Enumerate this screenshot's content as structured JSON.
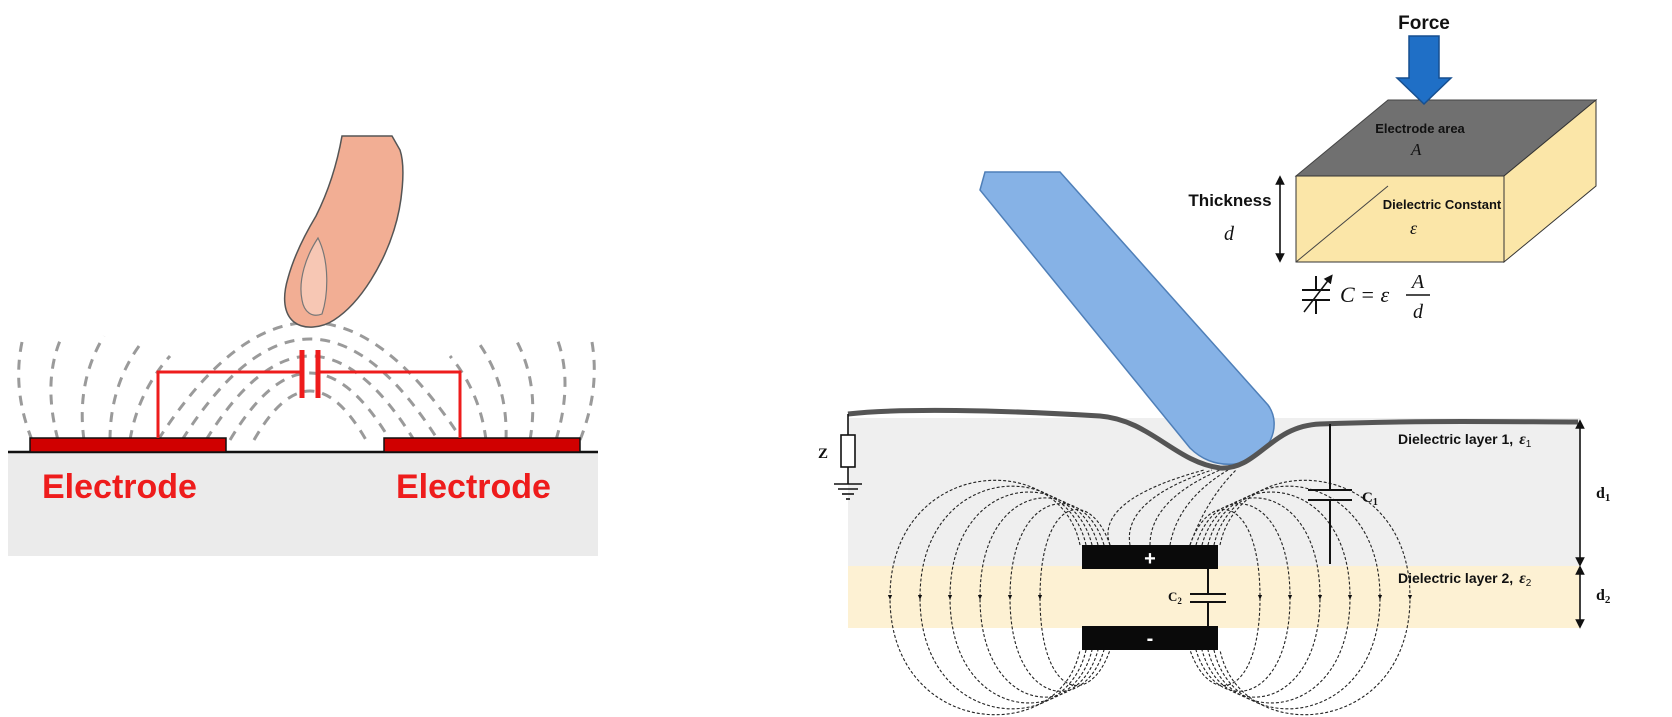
{
  "left_panel": {
    "electrode_left": "Electrode",
    "electrode_right": "Electrode"
  },
  "right_panel": {
    "force": "Force",
    "electrode_area": "Electrode area",
    "area_symbol": "A",
    "thickness": "Thickness",
    "thickness_symbol": "d",
    "dielectric_constant": "Dielectric Constant",
    "epsilon_symbol": "ε",
    "formula_lhs": "C = ε",
    "formula_num": "A",
    "formula_den": "d",
    "z_label": "Z",
    "c1_label": "C",
    "c1_sub": "1",
    "c2_label": "C",
    "c2_sub": "2",
    "plus": "+",
    "minus": "-",
    "layer1_label": "Dielectric layer 1,",
    "layer1_symbol": "ε",
    "layer1_sub": "1",
    "layer2_label": "Dielectric layer 2,",
    "layer2_symbol": "ε",
    "layer2_sub": "2",
    "d1_label": "d",
    "d1_sub": "1",
    "d2_label": "d",
    "d2_sub": "2"
  },
  "colors": {
    "electrode_red": "#d00000",
    "label_red": "#ee1c1c",
    "finger": "#f2ae94",
    "stylus": "#86b2e6",
    "force_arrow": "#1f6fc6",
    "dielectric_gray": "#efefef",
    "dielectric_yellow": "#fdf1d3",
    "electrode_top": "#707070",
    "box_face": "#fbe6a8"
  }
}
